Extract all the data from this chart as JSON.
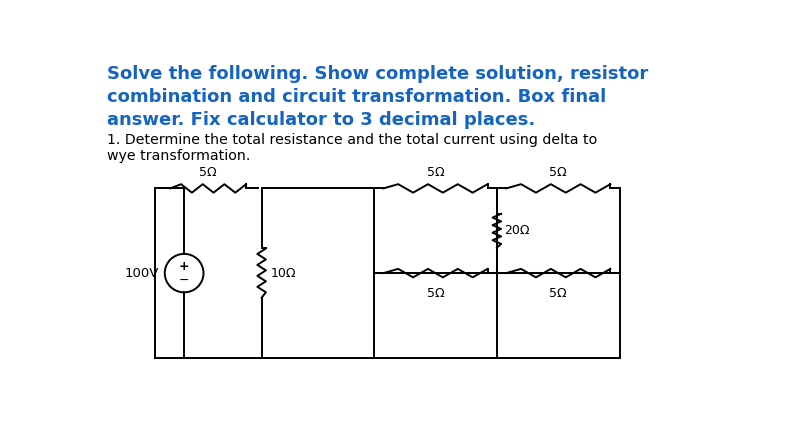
{
  "title_line1": "Solve the following. Show complete solution, resistor",
  "title_line2": "combination and circuit transformation. Box final",
  "title_line3": "answer. Fix calculator to 3 decimal places.",
  "subtitle": "1. Determine the total resistance and the total current using delta to\nwye transformation.",
  "title_color": "#1565C0",
  "subtitle_color": "#000000",
  "bg_color": "#ffffff",
  "lw": 1.4,
  "vs_label": "100V",
  "r1_label": "5Ω",
  "r2_label": "10Ω",
  "r_tl_label": "5Ω",
  "r_tr_label": "5Ω",
  "r_mid_label": "20Ω",
  "r_bl_label": "5Ω",
  "r_br_label": "5Ω"
}
